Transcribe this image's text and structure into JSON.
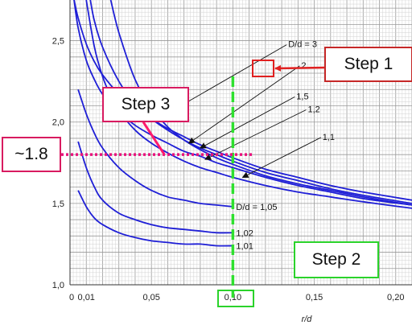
{
  "chart_data": {
    "type": "line",
    "xlabel": "r/d",
    "ylabel": "",
    "xlim": [
      0,
      0.21
    ],
    "ylim": [
      1.0,
      2.75
    ],
    "x_ticks": [
      {
        "v": 0,
        "label": "0"
      },
      {
        "v": 0.01,
        "label": "0,01"
      },
      {
        "v": 0.05,
        "label": "0,05"
      },
      {
        "v": 0.1,
        "label": "0,10"
      },
      {
        "v": 0.15,
        "label": "0,15"
      },
      {
        "v": 0.2,
        "label": "0,20"
      }
    ],
    "y_ticks": [
      {
        "v": 1.0,
        "label": "1,0"
      },
      {
        "v": 1.5,
        "label": "1,5"
      },
      {
        "v": 2.0,
        "label": "2,0"
      },
      {
        "v": 2.5,
        "label": "2,5"
      }
    ],
    "grid": true,
    "curve_color": "#1f1fd6",
    "series": [
      {
        "name": "D/d = 3",
        "x": [
          0.0025,
          0.005,
          0.01,
          0.015,
          0.02,
          0.03,
          0.04,
          0.05,
          0.06,
          0.07,
          0.08,
          0.09,
          0.1,
          0.12,
          0.14,
          0.16,
          0.18,
          0.21
        ],
        "y": [
          2.75,
          2.64,
          2.48,
          2.37,
          2.29,
          2.17,
          2.08,
          2.02,
          1.96,
          1.91,
          1.86,
          1.82,
          1.78,
          1.71,
          1.66,
          1.61,
          1.57,
          1.52
        ]
      },
      {
        "name": "2",
        "x": [
          0.0125,
          0.015,
          0.02,
          0.03,
          0.04,
          0.05,
          0.06,
          0.07,
          0.08,
          0.09,
          0.1,
          0.12,
          0.14,
          0.16,
          0.18,
          0.21
        ],
        "y": [
          2.75,
          2.62,
          2.46,
          2.25,
          2.11,
          2.02,
          1.95,
          1.89,
          1.84,
          1.8,
          1.76,
          1.69,
          1.64,
          1.59,
          1.55,
          1.5
        ]
      },
      {
        "name": "1,5",
        "x": [
          0.025,
          0.03,
          0.04,
          0.05,
          0.06,
          0.07,
          0.08,
          0.09,
          0.1,
          0.12,
          0.14,
          0.16,
          0.18,
          0.21
        ],
        "y": [
          2.75,
          2.55,
          2.26,
          2.09,
          1.97,
          1.89,
          1.83,
          1.78,
          1.74,
          1.67,
          1.62,
          1.58,
          1.54,
          1.49
        ]
      },
      {
        "name": "1,2",
        "x": [
          0.0025,
          0.005,
          0.01,
          0.015,
          0.02,
          0.025,
          0.03,
          0.04,
          0.05,
          0.06,
          0.07,
          0.08,
          0.09,
          0.1,
          0.12,
          0.14,
          0.16,
          0.18,
          0.21
        ],
        "y": [
          2.75,
          2.58,
          2.38,
          2.26,
          2.17,
          2.11,
          2.06,
          1.98,
          1.92,
          1.87,
          1.82,
          1.79,
          1.75,
          1.72,
          1.66,
          1.61,
          1.57,
          1.53,
          1.49
        ]
      },
      {
        "name": "1,1",
        "x": [
          0.01,
          0.015,
          0.02,
          0.025,
          0.03,
          0.04,
          0.05,
          0.06,
          0.07,
          0.08,
          0.09,
          0.1,
          0.12,
          0.14,
          0.16,
          0.18,
          0.21
        ],
        "y": [
          2.75,
          2.46,
          2.28,
          2.16,
          2.07,
          1.95,
          1.87,
          1.81,
          1.76,
          1.72,
          1.69,
          1.66,
          1.61,
          1.57,
          1.54,
          1.51,
          1.47
        ]
      },
      {
        "name": "D/d = 1,05",
        "x": [
          0.005,
          0.01,
          0.015,
          0.02,
          0.03,
          0.04,
          0.05,
          0.06,
          0.07,
          0.08,
          0.09,
          0.1
        ],
        "y": [
          2.2,
          2.05,
          1.93,
          1.84,
          1.72,
          1.64,
          1.58,
          1.54,
          1.52,
          1.5,
          1.49,
          1.48
        ]
      },
      {
        "name": "1,02",
        "x": [
          0.005,
          0.01,
          0.015,
          0.02,
          0.03,
          0.04,
          0.05,
          0.06,
          0.07,
          0.08,
          0.09,
          0.1
        ],
        "y": [
          1.88,
          1.72,
          1.6,
          1.52,
          1.44,
          1.4,
          1.37,
          1.35,
          1.34,
          1.33,
          1.32,
          1.32
        ]
      },
      {
        "name": "1,01",
        "x": [
          0.005,
          0.01,
          0.015,
          0.02,
          0.03,
          0.04,
          0.05,
          0.06,
          0.07,
          0.08,
          0.09,
          0.1
        ],
        "y": [
          1.58,
          1.48,
          1.41,
          1.37,
          1.32,
          1.29,
          1.27,
          1.26,
          1.25,
          1.25,
          1.24,
          1.24
        ]
      }
    ],
    "curve_labels": [
      {
        "text": "D/d = 3",
        "x": 0.134,
        "y": 2.48,
        "arrow_to": [
          0.068,
          2.1
        ]
      },
      {
        "text": "2",
        "x": 0.142,
        "y": 2.35,
        "arrow_to": [
          0.073,
          1.87
        ]
      },
      {
        "text": "1,5",
        "x": 0.139,
        "y": 2.16,
        "arrow_to": [
          0.08,
          1.84
        ]
      },
      {
        "text": "1,2",
        "x": 0.146,
        "y": 2.08,
        "arrow_to": [
          0.083,
          1.77
        ]
      },
      {
        "text": "1,1",
        "x": 0.155,
        "y": 1.91,
        "arrow_to": [
          0.106,
          1.66
        ]
      },
      {
        "text": "D/d = 1,05",
        "x": 0.102,
        "y": 1.48,
        "arrow_to": null
      },
      {
        "text": "1,02",
        "x": 0.102,
        "y": 1.32,
        "arrow_to": null
      },
      {
        "text": "1,01",
        "x": 0.102,
        "y": 1.24,
        "arrow_to": null
      }
    ],
    "annotations": {
      "vertical_line": {
        "x": 0.1,
        "color": "#2ee02e"
      },
      "horizontal_line": {
        "y": 1.8,
        "color": "#e8127c"
      },
      "pink_segment": {
        "from": [
          0.045,
          2.0
        ],
        "to": [
          0.058,
          1.8
        ],
        "color": "#ff1a6d"
      },
      "step1_arrow_to": [
        0.146,
        2.34
      ],
      "step1_color": "#e02020",
      "step3_color": "#d81b60",
      "step2_color": "#2bd32b"
    }
  },
  "callouts": {
    "step1": "Step 1",
    "step2": "Step 2",
    "step3": "Step 3",
    "approx": "~1.8"
  }
}
